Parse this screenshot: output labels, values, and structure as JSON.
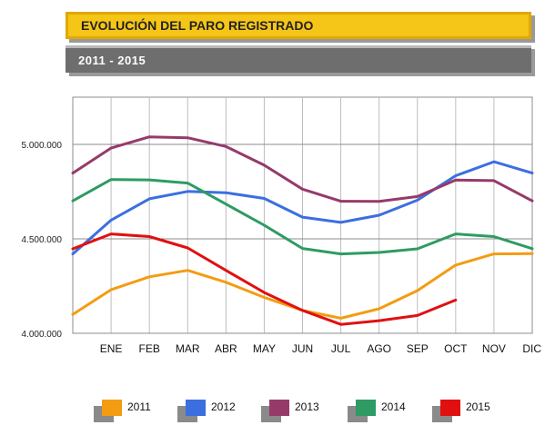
{
  "header": {
    "title": "EVOLUCIÓN DEL PARO REGISTRADO",
    "subtitle": "2011 - 2015"
  },
  "chart_data": {
    "type": "line",
    "categories": [
      "",
      "ENE",
      "FEB",
      "MAR",
      "ABR",
      "MAY",
      "JUN",
      "JUL",
      "AGO",
      "SEP",
      "OCT",
      "NOV",
      "DIC"
    ],
    "y_ticks": [
      "4.000.000",
      "4.500.000",
      "5.000.000"
    ],
    "y_tick_values": [
      4000000,
      4500000,
      5000000
    ],
    "ylim": [
      4000000,
      5250000
    ],
    "grid": true,
    "legend_position": "bottom",
    "series": [
      {
        "name": "2011",
        "color": "#f39c12",
        "values": [
          4100000,
          4231000,
          4299000,
          4333000,
          4270000,
          4190000,
          4121000,
          4080000,
          4130000,
          4226000,
          4361000,
          4420000,
          4422000
        ]
      },
      {
        "name": "2012",
        "color": "#3b6fe0",
        "values": [
          4420000,
          4599000,
          4712000,
          4751000,
          4744000,
          4714000,
          4615000,
          4587000,
          4625000,
          4705000,
          4834000,
          4908000,
          4848000
        ]
      },
      {
        "name": "2013",
        "color": "#963a6a",
        "values": [
          4848000,
          4981000,
          5040000,
          5035000,
          4989000,
          4890000,
          4763000,
          4699000,
          4698000,
          4724000,
          4811000,
          4808000,
          4701000
        ]
      },
      {
        "name": "2014",
        "color": "#2e9b64",
        "values": [
          4701000,
          4814000,
          4812000,
          4795000,
          4684000,
          4572000,
          4449000,
          4420000,
          4428000,
          4447000,
          4526000,
          4512000,
          4448000
        ]
      },
      {
        "name": "2015",
        "color": "#e01010",
        "values": [
          4447000,
          4526000,
          4512000,
          4452000,
          4333000,
          4216000,
          4121000,
          4047000,
          4067000,
          4094000,
          4176000,
          null,
          null
        ]
      }
    ]
  }
}
